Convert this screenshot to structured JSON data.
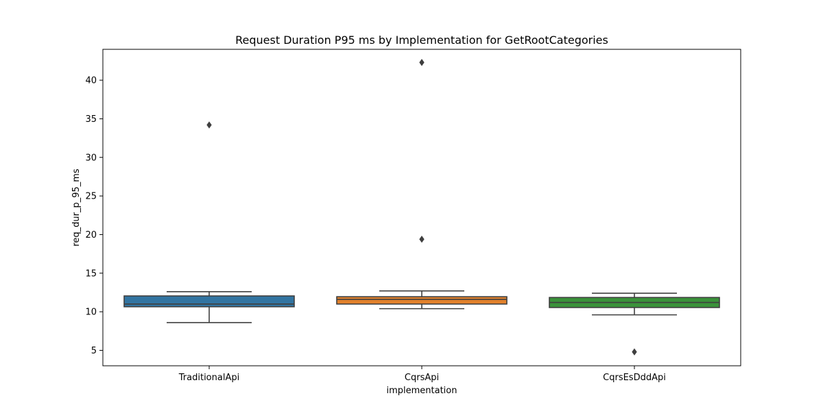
{
  "chart_data": {
    "type": "box",
    "title": "Request Duration P95 ms by Implementation for GetRootCategories",
    "xlabel": "implementation",
    "ylabel": "req_dur_p_95_ms",
    "ylim": [
      3,
      44
    ],
    "yticks": [
      5,
      10,
      15,
      20,
      25,
      30,
      35,
      40
    ],
    "grid": false,
    "categories": [
      "TraditionalApi",
      "CqrsApi",
      "CqrsEsDddApi"
    ],
    "boxes": [
      {
        "name": "TraditionalApi",
        "color": "#3274a1",
        "whisker_low": 8.6,
        "q1": 10.65,
        "median": 11.0,
        "q3": 12.05,
        "whisker_high": 12.6,
        "outliers": [
          34.2
        ]
      },
      {
        "name": "CqrsApi",
        "color": "#e1812c",
        "whisker_low": 10.4,
        "q1": 11.0,
        "median": 11.6,
        "q3": 11.95,
        "whisker_high": 12.7,
        "outliers": [
          19.4,
          42.3
        ]
      },
      {
        "name": "CqrsEsDddApi",
        "color": "#3a923a",
        "whisker_low": 9.6,
        "q1": 10.55,
        "median": 11.2,
        "q3": 11.85,
        "whisker_high": 12.4,
        "outliers": [
          4.8
        ]
      }
    ]
  }
}
